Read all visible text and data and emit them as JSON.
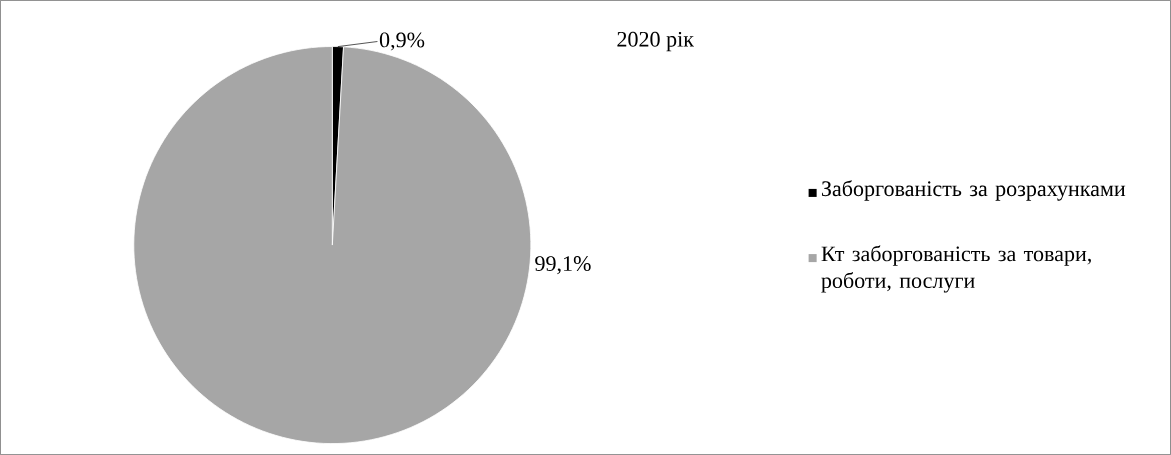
{
  "chart_data": {
    "type": "pie",
    "title": "2020 рік",
    "categories": [
      "Заборгованість за розрахунками",
      "Кт заборгованість за товари, роботи, послуги"
    ],
    "values": [
      0.9,
      99.1
    ],
    "colors": [
      "#000000",
      "#a6a6a6"
    ],
    "value_labels": [
      "0,9%",
      "99,1%"
    ],
    "legend": "right"
  }
}
